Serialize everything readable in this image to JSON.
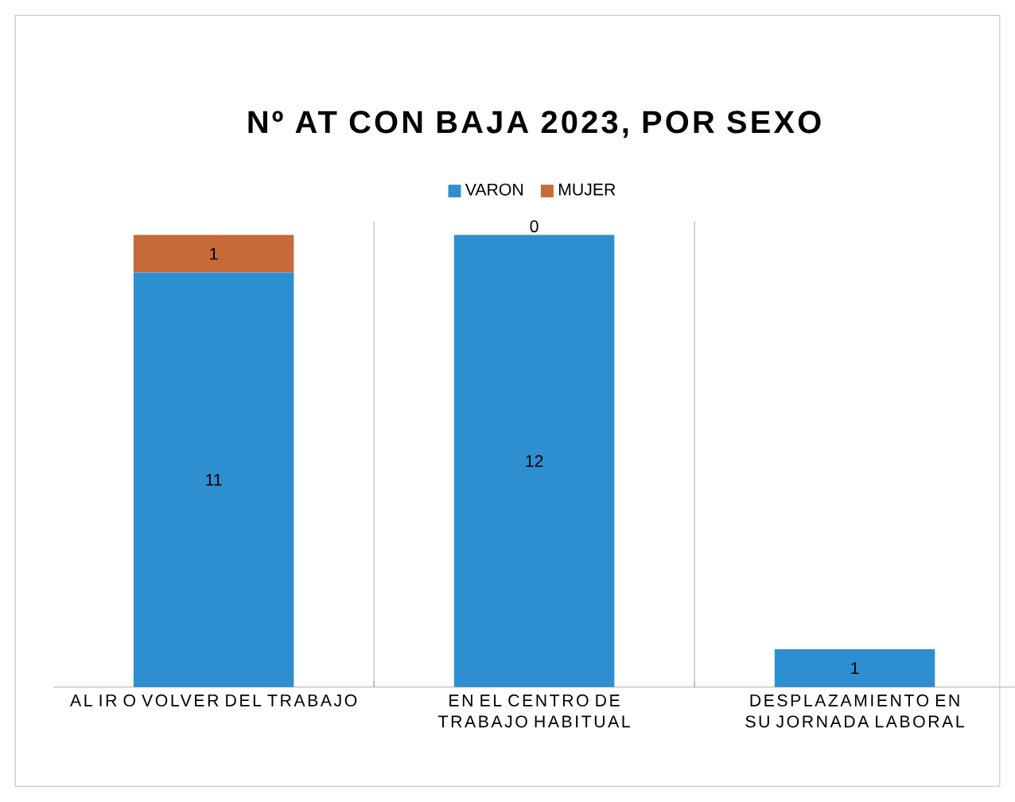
{
  "chart_data": {
    "type": "bar",
    "title": "Nº AT CON BAJA 2023, POR SEXO",
    "stacked": true,
    "data_labels": true,
    "legend": "top",
    "grid": "x",
    "categories": [
      "AL IR O VOLVER DEL TRABAJO",
      "EN EL CENTRO DE TRABAJO HABITUAL",
      "DESPLAZAMIENTO EN SU JORNADA LABORAL"
    ],
    "series": [
      {
        "name": "VARON",
        "color": "#2e8fd0",
        "values": [
          11,
          12,
          1
        ]
      },
      {
        "name": "MUJER",
        "color": "#c8693a",
        "values": [
          1,
          0,
          null
        ]
      }
    ]
  }
}
